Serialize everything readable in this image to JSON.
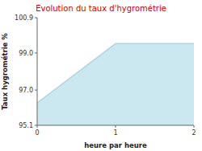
{
  "chart_data": {
    "type": "area",
    "title": "Evolution du taux d'hygrométrie",
    "x_label": "heure par heure",
    "y_label": "Taux hygrométrie %",
    "x": [
      0,
      1,
      2
    ],
    "values": [
      96.3,
      99.5,
      99.5
    ],
    "color": "#a8d8e8",
    "xlim": [
      0,
      2
    ],
    "ylim": [
      95.1,
      100.9
    ],
    "xticks": [
      0,
      1,
      2
    ],
    "yticks": [
      95.1,
      {
        "value": 97.0,
        "label": "97.0"
      },
      {
        "value": 99.0,
        "label": "99.0"
      },
      100.9
    ],
    "grid": false
  }
}
